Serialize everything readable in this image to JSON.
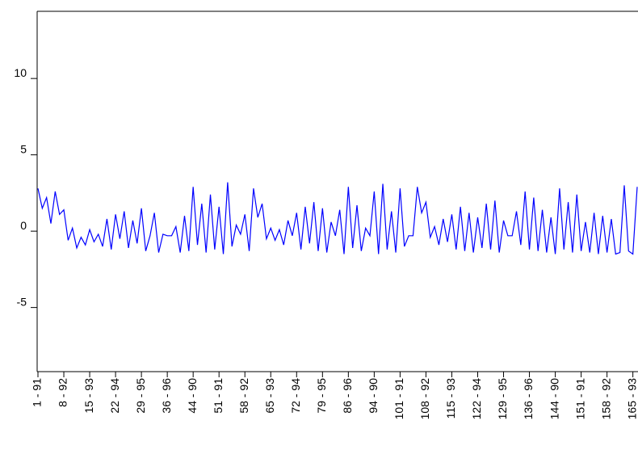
{
  "chart_data": {
    "type": "line",
    "color": "#0000ff",
    "categories": [
      "1 - 91",
      null,
      null,
      null,
      null,
      null,
      "8 - 92",
      null,
      null,
      null,
      null,
      null,
      "15 - 93",
      null,
      null,
      null,
      null,
      null,
      "22 - 94",
      null,
      null,
      null,
      null,
      null,
      "29 - 95",
      null,
      null,
      null,
      null,
      null,
      "36 - 96",
      null,
      null,
      null,
      null,
      null,
      "44 - 90",
      null,
      null,
      null,
      null,
      null,
      "51 - 91",
      null,
      null,
      null,
      null,
      null,
      "58 - 92",
      null,
      null,
      null,
      null,
      null,
      "65 - 93",
      null,
      null,
      null,
      null,
      null,
      "72 - 94",
      null,
      null,
      null,
      null,
      null,
      "79 - 95",
      null,
      null,
      null,
      null,
      null,
      "86 - 96",
      null,
      null,
      null,
      null,
      null,
      "94 - 90",
      null,
      null,
      null,
      null,
      null,
      "101 - 91",
      null,
      null,
      null,
      null,
      null,
      "108 - 92",
      null,
      null,
      null,
      null,
      null,
      "115 - 93",
      null,
      null,
      null,
      null,
      null,
      "122 - 94",
      null,
      null,
      null,
      null,
      null,
      "129 - 95",
      null,
      null,
      null,
      null,
      null,
      "136 - 96",
      null,
      null,
      null,
      null,
      null,
      "144 - 90",
      null,
      null,
      null,
      null,
      null,
      "151 - 91",
      null,
      null,
      null,
      null,
      null,
      "158 - 92",
      null,
      null,
      null,
      null,
      null,
      "165 - 93",
      null
    ],
    "values": [
      2.8,
      1.5,
      2.2,
      0.5,
      2.6,
      1.1,
      1.4,
      -0.6,
      0.2,
      -1.1,
      -0.4,
      -0.9,
      0.1,
      -0.7,
      -0.2,
      -1.0,
      0.8,
      -1.2,
      1.1,
      -0.5,
      1.3,
      -1.1,
      0.7,
      -0.8,
      1.5,
      -1.3,
      -0.3,
      1.2,
      -1.4,
      -0.2,
      -0.3,
      -0.3,
      0.3,
      -1.4,
      1.0,
      -1.3,
      2.9,
      -0.9,
      1.8,
      -1.4,
      2.4,
      -1.2,
      1.6,
      -1.5,
      3.2,
      -1.0,
      0.4,
      -0.2,
      1.1,
      -1.3,
      2.8,
      0.9,
      1.8,
      -0.5,
      0.2,
      -0.6,
      0.1,
      -0.9,
      0.7,
      -0.3,
      1.2,
      -1.2,
      1.6,
      -0.8,
      1.9,
      -1.3,
      1.5,
      -1.4,
      0.6,
      -0.3,
      1.4,
      -1.5,
      2.9,
      -1.1,
      1.7,
      -1.3,
      0.2,
      -0.3,
      2.6,
      -1.5,
      3.1,
      -1.2,
      1.3,
      -1.4,
      2.8,
      -1.0,
      -0.3,
      -0.3,
      2.9,
      1.2,
      1.9,
      -0.4,
      0.3,
      -0.9,
      0.8,
      -0.7,
      1.1,
      -1.2,
      1.6,
      -1.3,
      1.2,
      -1.4,
      0.9,
      -1.1,
      1.8,
      -1.2,
      2.0,
      -1.4,
      0.7,
      -0.3,
      -0.3,
      1.3,
      -0.9,
      2.6,
      -1.2,
      2.2,
      -1.3,
      1.4,
      -1.4,
      0.9,
      -1.5,
      2.8,
      -1.2,
      1.9,
      -1.4,
      2.4,
      -1.3,
      0.6,
      -1.4,
      1.2,
      -1.5,
      1.0,
      -1.4,
      0.8,
      -1.5,
      -1.4,
      3.0,
      -1.3,
      -1.5,
      2.9
    ],
    "ylim": [
      -9.2,
      14.4
    ],
    "yticks": [
      -5,
      0,
      5,
      10
    ]
  }
}
